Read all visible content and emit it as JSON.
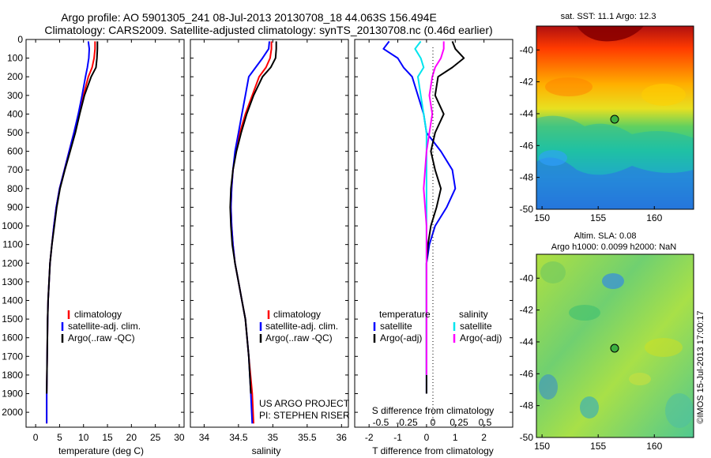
{
  "header": {
    "line1": "Argo profile: AO 5901305_241 08-Jul-2013 20130708_18 44.063S 156.494E",
    "line2": "Climatology: CARS2009. Satellite-adjusted climatology: synTS_20130708.nc (0.46d earlier)"
  },
  "colors": {
    "climatology": "#ff0000",
    "satellite": "#0000ff",
    "argo": "#000000",
    "satellite_salinity": "#00e5ee",
    "argo_salinity": "#ff00ff"
  },
  "chart_data": [
    {
      "type": "line",
      "id": "temperature",
      "xlabel": "temperature (deg C)",
      "ylabel": "",
      "xlim": [
        -2,
        31
      ],
      "ylim": [
        2080,
        0
      ],
      "xticks": [
        0,
        5,
        10,
        15,
        20,
        25,
        30
      ],
      "yticks": [
        0,
        100,
        200,
        300,
        400,
        500,
        600,
        700,
        800,
        900,
        1000,
        1100,
        1200,
        1300,
        1400,
        1500,
        1600,
        1700,
        1800,
        1900,
        2000
      ],
      "legend": [
        "climatology",
        "satellite-adj. clim.",
        "Argo(..raw -QC)"
      ],
      "series": [
        {
          "name": "climatology",
          "color": "#ff0000",
          "x": [
            12.4,
            12.4,
            12.2,
            11.8,
            11.0,
            10.0,
            9.0,
            8.0,
            7.0,
            6.0,
            5.0,
            4.3,
            3.8,
            3.4,
            3.0,
            2.8,
            2.6,
            2.5,
            2.4,
            2.3,
            2.3
          ],
          "y": [
            10,
            50,
            100,
            150,
            200,
            300,
            400,
            500,
            600,
            700,
            800,
            900,
            1000,
            1100,
            1200,
            1300,
            1400,
            1500,
            1700,
            1900,
            2060
          ]
        },
        {
          "name": "satellite-adj. clim.",
          "color": "#0000ff",
          "x": [
            11.0,
            11.2,
            11.1,
            10.8,
            10.4,
            9.7,
            8.9,
            8.0,
            7.0,
            6.0,
            5.0,
            4.3,
            3.8,
            3.4,
            3.0,
            2.8,
            2.6,
            2.5,
            2.4,
            2.3,
            2.3
          ],
          "y": [
            10,
            50,
            100,
            150,
            200,
            300,
            400,
            500,
            600,
            700,
            800,
            900,
            1000,
            1100,
            1200,
            1300,
            1400,
            1500,
            1700,
            1900,
            2060
          ]
        },
        {
          "name": "Argo(..raw -QC)",
          "color": "#000000",
          "x": [
            12.9,
            12.9,
            12.8,
            12.6,
            11.6,
            10.2,
            9.2,
            8.3,
            7.2,
            6.1,
            5.1,
            4.4,
            3.9,
            3.4,
            3.0,
            2.8,
            2.6,
            2.5,
            2.4,
            2.3
          ],
          "y": [
            10,
            50,
            100,
            150,
            200,
            300,
            400,
            500,
            600,
            700,
            800,
            900,
            1000,
            1100,
            1200,
            1300,
            1400,
            1500,
            1700,
            1900
          ]
        }
      ]
    },
    {
      "type": "line",
      "id": "salinity",
      "xlabel": "salinity",
      "ylabel": "",
      "xlim": [
        33.8,
        36.1
      ],
      "ylim": [
        2080,
        0
      ],
      "xticks": [
        34,
        34.5,
        35,
        35.5,
        36
      ],
      "legend": [
        "climatology",
        "satellite-adj. clim.",
        "Argo(..raw -QC)"
      ],
      "annotations": [
        "US ARGO PROJECT",
        "PI: STEPHEN RISER"
      ],
      "series": [
        {
          "name": "climatology",
          "color": "#ff0000",
          "x": [
            34.98,
            34.98,
            34.96,
            34.9,
            34.8,
            34.7,
            34.6,
            34.52,
            34.46,
            34.42,
            34.4,
            34.39,
            34.4,
            34.42,
            34.45,
            34.5,
            34.55,
            34.6,
            34.65,
            34.7,
            34.72
          ],
          "y": [
            10,
            50,
            100,
            150,
            200,
            300,
            400,
            500,
            600,
            700,
            800,
            900,
            1000,
            1100,
            1200,
            1300,
            1400,
            1500,
            1700,
            1900,
            2060
          ]
        },
        {
          "name": "satellite-adj. clim.",
          "color": "#0000ff",
          "x": [
            34.95,
            34.94,
            34.85,
            34.75,
            34.65,
            34.6,
            34.55,
            34.5,
            34.45,
            34.42,
            34.4,
            34.39,
            34.4,
            34.42,
            34.45,
            34.5,
            34.55,
            34.6,
            34.65,
            34.68,
            34.7
          ],
          "y": [
            10,
            50,
            100,
            150,
            200,
            300,
            400,
            500,
            600,
            700,
            800,
            900,
            1000,
            1100,
            1200,
            1300,
            1400,
            1500,
            1700,
            1900,
            2060
          ]
        },
        {
          "name": "Argo(..raw -QC)",
          "color": "#000000",
          "x": [
            35.05,
            35.05,
            35.04,
            34.97,
            34.85,
            34.72,
            34.62,
            34.54,
            34.47,
            34.42,
            34.39,
            34.38,
            34.39,
            34.41,
            34.45,
            34.5,
            34.55,
            34.6,
            34.65,
            34.68
          ],
          "y": [
            10,
            50,
            100,
            150,
            200,
            300,
            400,
            500,
            600,
            700,
            800,
            900,
            1000,
            1100,
            1200,
            1300,
            1400,
            1500,
            1700,
            1900
          ]
        }
      ]
    },
    {
      "type": "line",
      "id": "difference",
      "xlabel": "T difference from climatology",
      "top_label": "S difference from climatology",
      "xlim": [
        -2.5,
        3.0
      ],
      "ylim": [
        2080,
        0
      ],
      "xticks": [
        -2,
        -1,
        0,
        1,
        2
      ],
      "top_ticks": [
        "-0.5",
        "-0.25",
        "0",
        "0.25",
        "0.5"
      ],
      "legend_temperature_title": "temperature",
      "legend_salinity_title": "salinity",
      "legend_temperature": [
        "satellite",
        "Argo(-adj)"
      ],
      "legend_salinity": [
        "satellite",
        "Argo(-adj)"
      ],
      "series": [
        {
          "name": "satellite",
          "group": "temperature",
          "color": "#0000ff",
          "x": [
            -1.3,
            -1.5,
            -1.0,
            -0.8,
            -0.5,
            -0.3,
            -0.1,
            0.0,
            0.5,
            0.9,
            1.0,
            0.7,
            0.3,
            0.1,
            0.0,
            0.0,
            0.0,
            0.0,
            0.0,
            0.0
          ],
          "y": [
            10,
            50,
            100,
            150,
            200,
            300,
            400,
            500,
            600,
            700,
            800,
            900,
            1000,
            1100,
            1200,
            1300,
            1400,
            1500,
            1700,
            1900
          ]
        },
        {
          "name": "Argo(-adj)",
          "group": "temperature",
          "color": "#000000",
          "x": [
            0.9,
            1.0,
            1.3,
            0.9,
            0.4,
            0.3,
            0.6,
            0.3,
            0.15,
            0.3,
            0.5,
            0.35,
            0.15,
            0.05,
            0.0,
            0.0,
            0.0,
            0.0,
            0.0,
            0.0
          ],
          "y": [
            10,
            50,
            100,
            150,
            200,
            300,
            400,
            500,
            600,
            700,
            800,
            900,
            1000,
            1100,
            1200,
            1300,
            1400,
            1500,
            1700,
            1900
          ]
        },
        {
          "name": "satellite",
          "group": "salinity",
          "color": "#00e5ee",
          "x": [
            -0.2,
            -0.4,
            -0.2,
            -0.1,
            -0.3,
            -0.2,
            -0.1,
            0.0,
            0.0,
            0.0,
            0.0,
            0.0,
            0.0,
            0.0,
            0.0,
            0.0,
            0.0,
            0.0,
            0.0
          ],
          "y": [
            10,
            50,
            100,
            150,
            200,
            300,
            400,
            500,
            600,
            700,
            800,
            900,
            1000,
            1100,
            1200,
            1300,
            1400,
            1500,
            1800
          ]
        },
        {
          "name": "Argo(-adj)",
          "group": "salinity",
          "color": "#ff00ff",
          "x": [
            0.6,
            0.6,
            0.5,
            0.3,
            0.2,
            0.1,
            0.2,
            0.1,
            0.0,
            -0.05,
            -0.1,
            -0.05,
            0.0,
            0.0,
            0.0,
            0.0,
            0.0,
            0.0,
            0.0
          ],
          "y": [
            10,
            50,
            100,
            150,
            200,
            300,
            400,
            500,
            600,
            700,
            800,
            900,
            1000,
            1100,
            1200,
            1300,
            1400,
            1500,
            1800
          ]
        }
      ]
    },
    {
      "type": "heatmap",
      "id": "sst_map",
      "title": "sat. SST: 11.1  Argo: 12.3",
      "xlim": [
        149.5,
        163.5
      ],
      "ylim": [
        -50,
        -38.5
      ],
      "xticks": [
        150,
        155,
        160
      ],
      "yticks": [
        -40,
        -42,
        -44,
        -46,
        -48,
        -50
      ],
      "marker": {
        "lon": 156.494,
        "lat": -44.063
      }
    },
    {
      "type": "heatmap",
      "id": "sla_map",
      "title_line1": "Altim. SLA: 0.08",
      "title_line2": "Argo h1000: 0.0099  h2000: NaN",
      "xlim": [
        149.5,
        163.5
      ],
      "ylim": [
        -50,
        -38.5
      ],
      "xticks": [
        150,
        155,
        160
      ],
      "yticks": [
        -40,
        -42,
        -44,
        -46,
        -48,
        -50
      ],
      "marker": {
        "lon": 156.494,
        "lat": -44.063
      }
    }
  ],
  "footer": {
    "side_label": "©IMOS 15-Jul-2013 17:00:17"
  }
}
